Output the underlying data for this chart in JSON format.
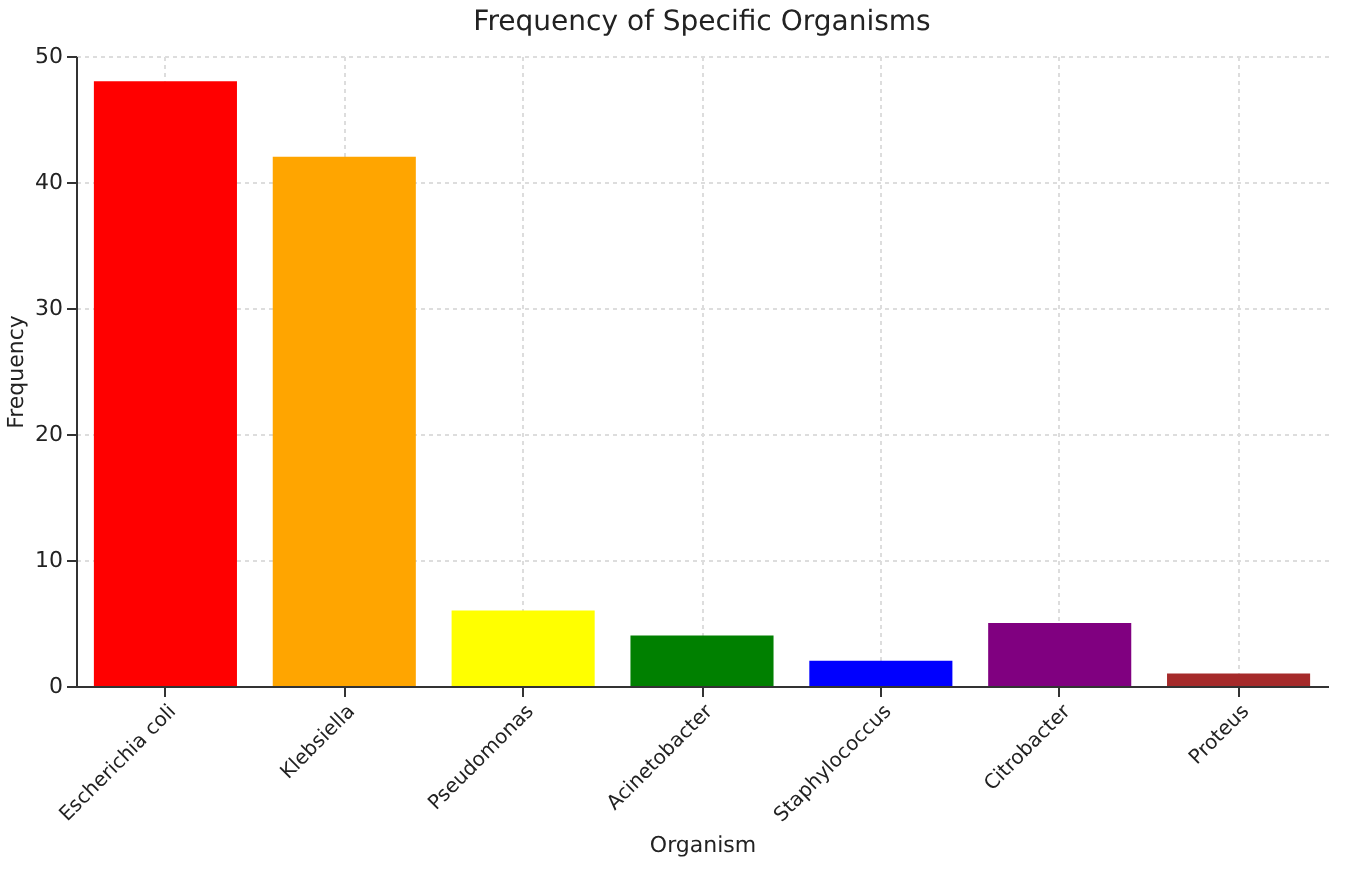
{
  "chart_data": {
    "type": "bar",
    "title": "Frequency of Specific Organisms",
    "xlabel": "Organism",
    "ylabel": "Frequency",
    "categories": [
      "Escherichia coli",
      "Klebsiella",
      "Pseudomonas",
      "Acinetobacter",
      "Staphylococcus",
      "Citrobacter",
      "Proteus"
    ],
    "values": [
      48,
      42,
      6,
      4,
      2,
      5,
      1
    ],
    "colors": [
      "#ff0000",
      "#ffa500",
      "#ffff00",
      "#008000",
      "#0000ff",
      "#800080",
      "#a52a2a"
    ],
    "ylim": [
      0,
      50
    ],
    "yticks": [
      0,
      10,
      20,
      30,
      40,
      50
    ],
    "grid": true
  }
}
